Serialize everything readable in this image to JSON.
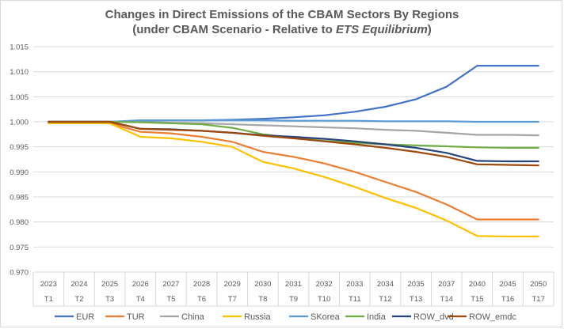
{
  "chart_data": {
    "type": "line",
    "title_line1": "Changes in Direct Emissions of the CBAM Sectors By Regions",
    "title_line2_prefix": "(under CBAM Scenario - Relative to ",
    "title_line2_italic": "ETS Equilibrium",
    "title_line2_suffix": ")",
    "ylim": [
      0.97,
      1.015
    ],
    "yticks": [
      "0.970",
      "0.975",
      "0.980",
      "0.985",
      "0.990",
      "0.995",
      "1.000",
      "1.005",
      "1.010",
      "1.015"
    ],
    "grid": true,
    "legend_position": "bottom",
    "categories_years": [
      "2023",
      "2024",
      "2025",
      "2026",
      "2027",
      "2028",
      "2029",
      "2030",
      "2031",
      "2032",
      "2033",
      "2034",
      "2035",
      "2037",
      "2040",
      "2045",
      "2050"
    ],
    "categories_periods": [
      "T1",
      "T2",
      "T3",
      "T4",
      "T5",
      "T6",
      "T7",
      "T8",
      "T9",
      "T10",
      "T11",
      "T12",
      "T13",
      "T14",
      "T15",
      "T16",
      "T17"
    ],
    "series": [
      {
        "name": "EUR",
        "color": "#4472C4",
        "values": [
          1.0,
          1.0,
          1.0,
          1.0002,
          1.0003,
          1.0003,
          1.0004,
          1.0006,
          1.0009,
          1.0013,
          1.002,
          1.003,
          1.0045,
          1.007,
          1.0112,
          1.0112,
          1.0112
        ]
      },
      {
        "name": "TUR",
        "color": "#ED7D31",
        "values": [
          0.9997,
          0.9997,
          0.9997,
          0.998,
          0.9977,
          0.997,
          0.996,
          0.994,
          0.993,
          0.9917,
          0.99,
          0.988,
          0.986,
          0.9835,
          0.9805,
          0.9805,
          0.9805
        ]
      },
      {
        "name": "China",
        "color": "#A5A5A5",
        "values": [
          1.0,
          1.0,
          1.0,
          1.0,
          0.9998,
          0.9997,
          0.9995,
          0.9993,
          0.9991,
          0.9989,
          0.9987,
          0.9984,
          0.9982,
          0.9978,
          0.9974,
          0.9974,
          0.9973
        ]
      },
      {
        "name": "Russia",
        "color": "#FFC000",
        "values": [
          0.9997,
          0.9997,
          0.9997,
          0.997,
          0.9967,
          0.996,
          0.995,
          0.992,
          0.9907,
          0.989,
          0.987,
          0.9848,
          0.9828,
          0.9803,
          0.9772,
          0.9771,
          0.9771
        ]
      },
      {
        "name": "SKorea",
        "color": "#5B9BD5",
        "values": [
          1.0,
          1.0,
          1.0,
          1.0003,
          1.0003,
          1.0003,
          1.0003,
          1.0003,
          1.0002,
          1.0002,
          1.0002,
          1.0001,
          1.0001,
          1.0001,
          1.0,
          1.0,
          1.0
        ]
      },
      {
        "name": "India",
        "color": "#70AD47",
        "values": [
          1.0,
          1.0,
          1.0,
          0.9999,
          0.9997,
          0.9995,
          0.9988,
          0.9975,
          0.9968,
          0.9962,
          0.9958,
          0.9955,
          0.9953,
          0.9951,
          0.9949,
          0.9948,
          0.9948
        ]
      },
      {
        "name": "ROW_dvd",
        "color": "#264478",
        "values": [
          1.0,
          1.0,
          1.0,
          0.9986,
          0.9985,
          0.9982,
          0.9978,
          0.9973,
          0.997,
          0.9966,
          0.9961,
          0.9955,
          0.9948,
          0.9938,
          0.9922,
          0.9921,
          0.9921
        ]
      },
      {
        "name": "ROW_emdc",
        "color": "#9E480E",
        "values": [
          1.0,
          1.0,
          1.0,
          0.9986,
          0.9984,
          0.9982,
          0.9978,
          0.9972,
          0.9967,
          0.9961,
          0.9955,
          0.9948,
          0.994,
          0.993,
          0.9915,
          0.9914,
          0.9913
        ]
      }
    ]
  }
}
